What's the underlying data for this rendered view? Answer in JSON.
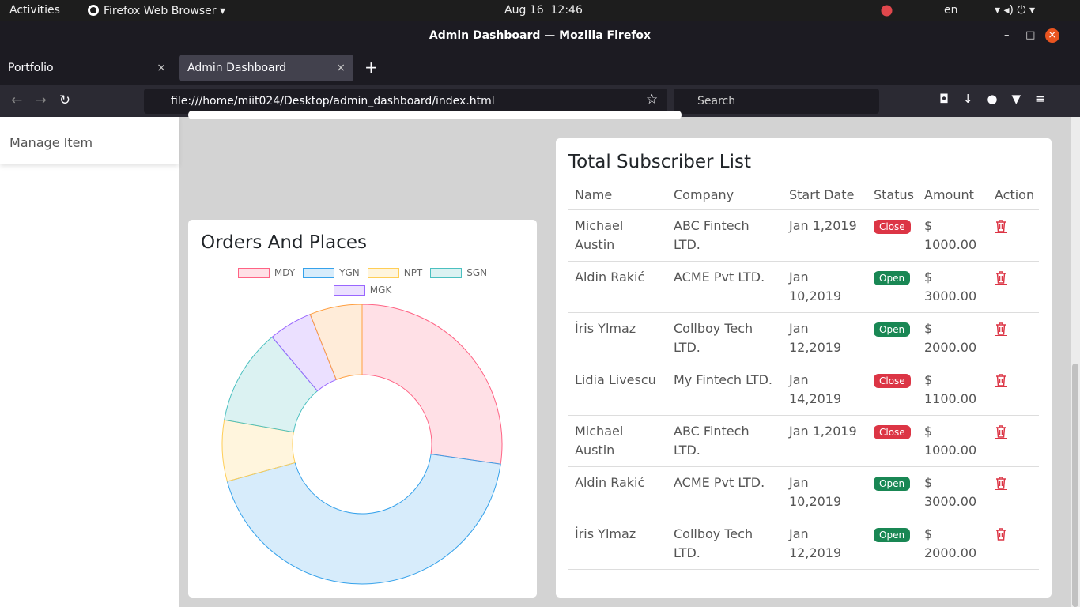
{
  "system_bar": {
    "activities": "Activities",
    "app": "Firefox Web Browser",
    "clock": "Aug 16  12:46",
    "lang": "en"
  },
  "window_title": "Admin Dashboard — Mozilla Firefox",
  "tabs": [
    "Portfolio",
    "Admin Dashboard"
  ],
  "url": "file:///home/miit024/Desktop/admin_dashboard/index.html",
  "search_placeholder": "Search",
  "sidebar": {
    "items": [
      "Manage Item"
    ]
  },
  "chart_data": {
    "type": "doughnut",
    "title": "Orders And Places",
    "categories": [
      "MDY",
      "YGN",
      "NPT",
      "SGN",
      "MGK",
      null
    ],
    "values": [
      27,
      43,
      7,
      11,
      5,
      6
    ],
    "colors": [
      "#ff6384",
      "#36a2eb",
      "#ffce56",
      "#4bc0c0",
      "#9966ff",
      "#ff9f40"
    ]
  },
  "table": {
    "title": "Total Subscriber List",
    "columns": [
      "Name",
      "Company",
      "Start Date",
      "Status",
      "Amount",
      "Action"
    ],
    "status_colors": {
      "Close": "#dc3545",
      "Open": "#198754"
    },
    "rows": [
      [
        "Michael Austin",
        "ABC Fintech LTD.",
        "Jan 1,2019",
        "Close",
        "$ 1000.00"
      ],
      [
        "Aldin Rakić",
        "ACME Pvt LTD.",
        "Jan 10,2019",
        "Open",
        "$ 3000.00"
      ],
      [
        "İris Ylmaz",
        "Collboy Tech LTD.",
        "Jan 12,2019",
        "Open",
        "$ 2000.00"
      ],
      [
        "Lidia Livescu",
        "My Fintech LTD.",
        "Jan 14,2019",
        "Close",
        "$ 1100.00"
      ],
      [
        "Michael Austin",
        "ABC Fintech LTD.",
        "Jan 1,2019",
        "Close",
        "$ 1000.00"
      ],
      [
        "Aldin Rakić",
        "ACME Pvt LTD.",
        "Jan 10,2019",
        "Open",
        "$ 3000.00"
      ],
      [
        "İris Ylmaz",
        "Collboy Tech LTD.",
        "Jan 12,2019",
        "Open",
        "$ 2000.00"
      ]
    ]
  }
}
